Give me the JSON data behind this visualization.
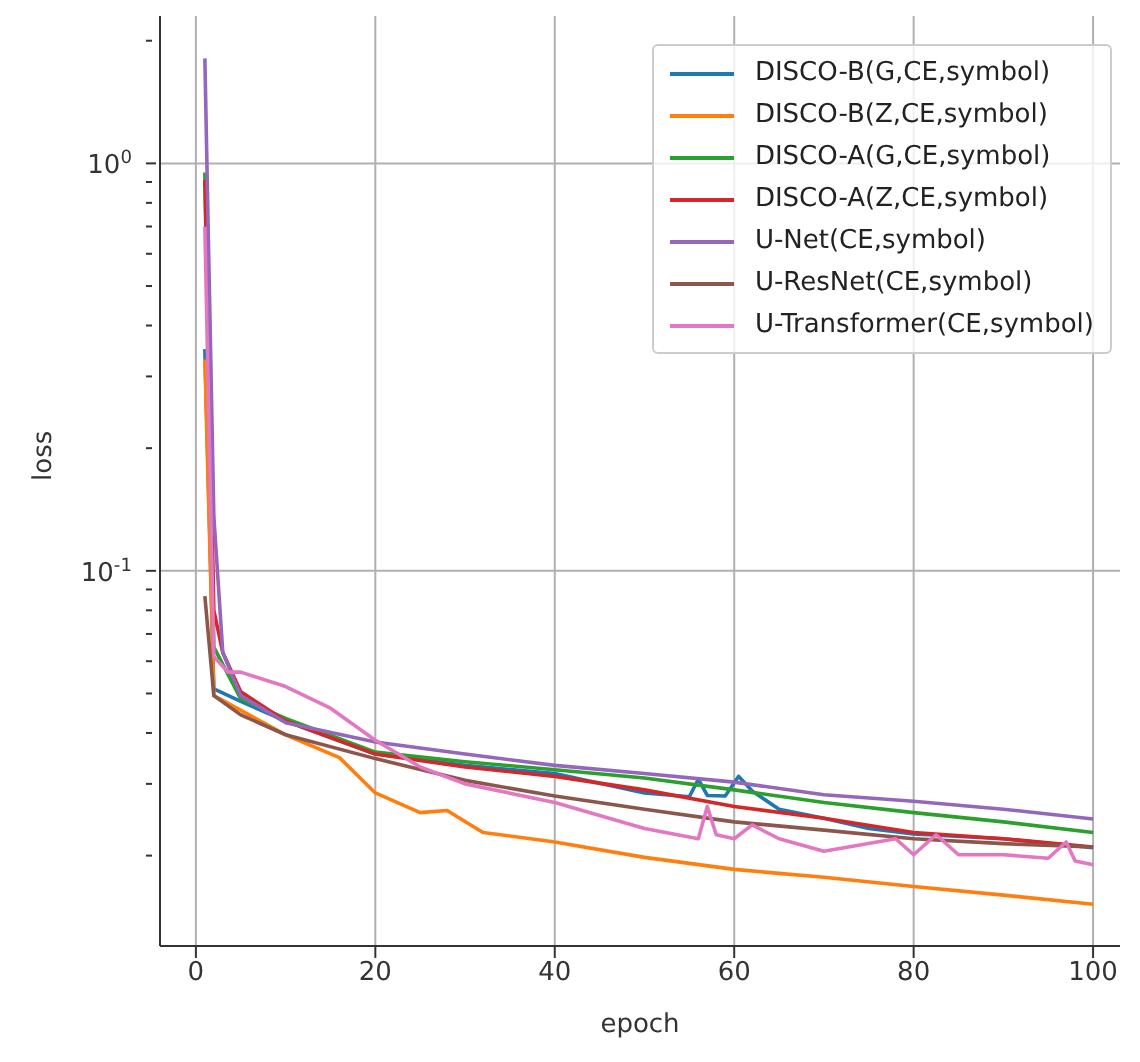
{
  "chart_data": {
    "type": "line",
    "xlabel": "epoch",
    "ylabel": "loss",
    "log": "y",
    "grid": true,
    "legend": "top right",
    "line_style": "solid",
    "marker": "none",
    "xlim": [
      -4,
      103
    ],
    "xticks": [
      0,
      20,
      40,
      60,
      80,
      100
    ],
    "ylim": [
      0.012,
      2.3
    ],
    "yticks": [
      {
        "value": 0.02,
        "label": null
      },
      {
        "value": 0.03,
        "label": null
      },
      {
        "value": 0.04,
        "label": null
      },
      {
        "value": 0.05,
        "label": null
      },
      {
        "value": 0.06,
        "label": null
      },
      {
        "value": 0.07,
        "label": null
      },
      {
        "value": 0.08,
        "label": null
      },
      {
        "value": 0.09,
        "label": null
      },
      {
        "value": 0.1,
        "label": "10$^{-1}$"
      },
      {
        "value": 0.2,
        "label": null
      },
      {
        "value": 0.3,
        "label": null
      },
      {
        "value": 0.4,
        "label": null
      },
      {
        "value": 0.5,
        "label": null
      },
      {
        "value": 0.6,
        "label": null
      },
      {
        "value": 0.7,
        "label": null
      },
      {
        "value": 0.8,
        "label": null
      },
      {
        "value": 0.9,
        "label": null
      },
      {
        "value": 1,
        "label": "10$^{0}$"
      },
      {
        "value": 2,
        "label": null
      }
    ],
    "series": [
      {
        "name": "DISCO-B(G,CE,symbol)",
        "color": "#1f77b4",
        "x": [
          1,
          2,
          5,
          10,
          20,
          30,
          40,
          50,
          55,
          56,
          57,
          59,
          60.5,
          62,
          65,
          70,
          75,
          80,
          90,
          100
        ],
        "values": [
          0.35,
          0.0513,
          0.0478,
          0.0428,
          0.0355,
          0.0333,
          0.0318,
          0.0285,
          0.0279,
          0.0308,
          0.0281,
          0.028,
          0.0313,
          0.0288,
          0.026,
          0.0247,
          0.0233,
          0.0226,
          0.022,
          0.0209
        ]
      },
      {
        "name": "DISCO-B(Z,CE,symbol)",
        "color": "#ff7f0e",
        "x": [
          1,
          2,
          10,
          16,
          20,
          25,
          28,
          32,
          40,
          50,
          60,
          70,
          80,
          90,
          100
        ],
        "values": [
          0.33,
          0.0494,
          0.0396,
          0.0348,
          0.0285,
          0.0255,
          0.0258,
          0.0228,
          0.0216,
          0.0198,
          0.0185,
          0.0177,
          0.0168,
          0.016,
          0.0152
        ]
      },
      {
        "name": "DISCO-A(G,CE,symbol)",
        "color": "#2ca02c",
        "x": [
          1,
          2,
          5,
          10,
          20,
          30,
          40,
          50,
          60,
          70,
          80,
          90,
          100
        ],
        "values": [
          0.95,
          0.065,
          0.0485,
          0.0434,
          0.0359,
          0.034,
          0.0325,
          0.031,
          0.029,
          0.027,
          0.0255,
          0.0242,
          0.0228
        ]
      },
      {
        "name": "DISCO-A(Z,CE,symbol)",
        "color": "#d62728",
        "x": [
          1,
          2,
          3,
          5,
          10,
          20,
          30,
          40,
          50,
          60,
          70,
          80,
          90,
          100
        ],
        "values": [
          0.91,
          0.08,
          0.063,
          0.0505,
          0.0428,
          0.0355,
          0.033,
          0.0313,
          0.029,
          0.0264,
          0.0247,
          0.0228,
          0.022,
          0.021
        ]
      },
      {
        "name": "U-Net(CE,symbol)",
        "color": "#9467bd",
        "x": [
          1,
          2,
          3,
          5,
          10,
          20,
          30,
          40,
          50,
          60,
          70,
          80,
          90,
          100
        ],
        "values": [
          1.81,
          0.136,
          0.063,
          0.0494,
          0.0424,
          0.038,
          0.0355,
          0.0333,
          0.0318,
          0.0303,
          0.0282,
          0.0272,
          0.026,
          0.0246
        ]
      },
      {
        "name": "U-ResNet(CE,symbol)",
        "color": "#8c564b",
        "x": [
          1,
          2,
          5,
          10,
          20,
          30,
          40,
          50,
          60,
          70,
          80,
          90,
          100
        ],
        "values": [
          0.0867,
          0.0494,
          0.0443,
          0.0396,
          0.0346,
          0.0306,
          0.028,
          0.026,
          0.0242,
          0.0231,
          0.022,
          0.0214,
          0.021
        ]
      },
      {
        "name": "U-Transformer(CE,symbol)",
        "color": "#e377c2",
        "x": [
          1,
          2,
          3.6,
          5,
          10,
          15,
          20,
          25,
          30,
          40,
          50,
          56,
          57,
          58,
          60,
          62,
          65,
          70,
          78,
          80,
          82.5,
          85,
          90,
          95,
          97,
          98,
          100
        ],
        "values": [
          0.7,
          0.0616,
          0.0564,
          0.0564,
          0.052,
          0.046,
          0.0384,
          0.033,
          0.03,
          0.027,
          0.0233,
          0.022,
          0.0264,
          0.0225,
          0.022,
          0.0238,
          0.022,
          0.0205,
          0.022,
          0.0201,
          0.0225,
          0.0201,
          0.0201,
          0.0197,
          0.0216,
          0.0194,
          0.019
        ]
      }
    ]
  }
}
